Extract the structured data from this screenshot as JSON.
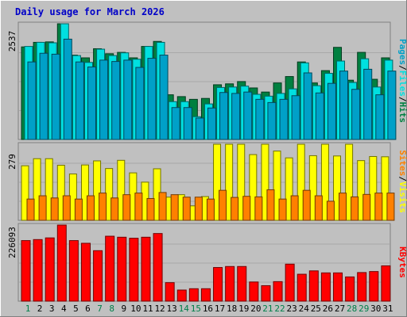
{
  "chart_data": {
    "type": "bar",
    "title": "Daily usage for March 2026",
    "categories": [
      "1",
      "2",
      "3",
      "4",
      "5",
      "6",
      "7",
      "8",
      "9",
      "10",
      "11",
      "12",
      "13",
      "14",
      "15",
      "16",
      "17",
      "18",
      "19",
      "20",
      "21",
      "22",
      "23",
      "24",
      "25",
      "26",
      "27",
      "28",
      "29",
      "30",
      "31"
    ],
    "weekend_days": [
      "1",
      "7",
      "8",
      "14",
      "15",
      "21",
      "22",
      "28",
      "29"
    ],
    "panels": [
      {
        "id": "hits",
        "max_label": "2537",
        "ylim": [
          0,
          2537
        ],
        "legend": [
          "Pages",
          "Files",
          "Hits"
        ],
        "series": [
          {
            "name": "Hits",
            "color": "#008040",
            "values": [
              2030,
              2130,
              2140,
              2537,
              1850,
              1790,
              1990,
              1880,
              1910,
              1790,
              2040,
              2150,
              980,
              940,
              880,
              900,
              1200,
              1220,
              1270,
              1130,
              1040,
              1240,
              1380,
              1700,
              1240,
              1510,
              2020,
              1300,
              1910,
              1320,
              1790
            ]
          },
          {
            "name": "Files",
            "color": "#00e0e0",
            "values": [
              2040,
              2130,
              2120,
              2537,
              1840,
              1690,
              1980,
              1840,
              1900,
              1760,
              2040,
              2130,
              830,
              830,
              500,
              780,
              1140,
              1150,
              1170,
              990,
              950,
              1010,
              1110,
              1680,
              1180,
              1450,
              1720,
              1250,
              1770,
              1150,
              1740
            ]
          },
          {
            "name": "Pages",
            "color": "#00a0c8",
            "values": [
              1700,
              1890,
              1870,
              2200,
              1700,
              1590,
              1740,
              1710,
              1740,
              1580,
              1780,
              1850,
              700,
              700,
              470,
              690,
              1030,
              1010,
              1040,
              880,
              810,
              880,
              960,
              1460,
              1020,
              1230,
              1500,
              1100,
              1540,
              980,
              1500
            ]
          }
        ]
      },
      {
        "id": "visits",
        "max_label": "279",
        "ylim": [
          0,
          279
        ],
        "legend": [
          "Sites",
          "Visits"
        ],
        "series": [
          {
            "name": "Visits",
            "color": "#ffff00",
            "values": [
              200,
              226,
              226,
              202,
              170,
              203,
              218,
              190,
              220,
              174,
              140,
              189,
              85,
              94,
              53,
              87,
              279,
              279,
              279,
              241,
              279,
              254,
              229,
              279,
              237,
              279,
              236,
              279,
              219,
              234,
              233
            ]
          },
          {
            "name": "Sites",
            "color": "#ff8000",
            "values": [
              78,
              90,
              82,
              90,
              78,
              90,
              100,
              82,
              94,
              100,
              80,
              102,
              94,
              85,
              85,
              78,
              110,
              84,
              88,
              86,
              112,
              78,
              90,
              110,
              90,
              70,
              100,
              86,
              95,
              100,
              100
            ]
          }
        ]
      },
      {
        "id": "kbytes",
        "max_label": "226093",
        "ylim": [
          0,
          226093
        ],
        "legend": [
          "KBytes"
        ],
        "series": [
          {
            "name": "KBytes",
            "color": "#ff0000",
            "values": [
              180000,
              183000,
              188000,
              226093,
              180000,
              172000,
              150000,
              193000,
              190000,
              187000,
              190000,
              201000,
              55000,
              33000,
              37000,
              37000,
              100000,
              103000,
              103000,
              57000,
              46000,
              58000,
              110000,
              80000,
              90000,
              84000,
              84000,
              72000,
              85000,
              88000,
              105000
            ]
          }
        ]
      }
    ]
  }
}
